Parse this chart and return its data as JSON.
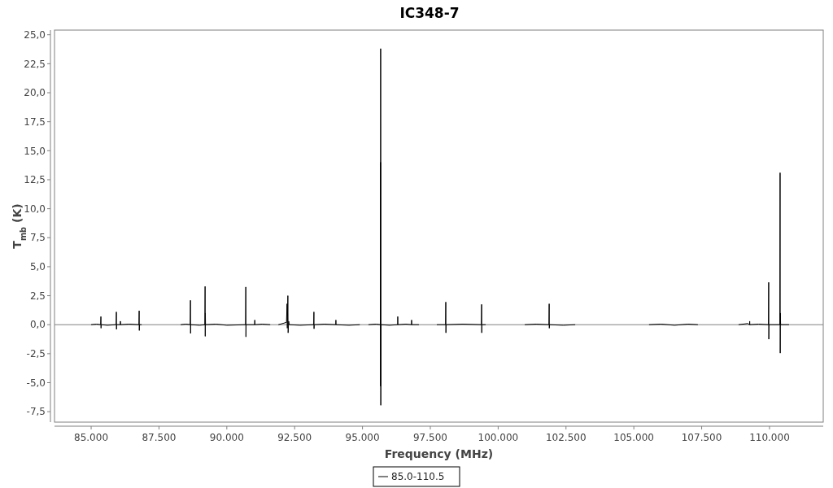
{
  "chart_data": {
    "type": "line",
    "title": "IC348-7",
    "xlabel": "Frequency (MHz)",
    "ylabel": "T$_{mb}$ (K)",
    "xlim": [
      83650,
      111980
    ],
    "ylim": [
      -8.4,
      25.4
    ],
    "xticks": [
      {
        "value": 85000,
        "label": "85.000"
      },
      {
        "value": 87500,
        "label": "87.500"
      },
      {
        "value": 90000,
        "label": "90.000"
      },
      {
        "value": 92500,
        "label": "92.500"
      },
      {
        "value": 95000,
        "label": "95.000"
      },
      {
        "value": 97500,
        "label": "97.500"
      },
      {
        "value": 100000,
        "label": "100.000"
      },
      {
        "value": 102500,
        "label": "102.500"
      },
      {
        "value": 105000,
        "label": "105.000"
      },
      {
        "value": 107500,
        "label": "107.500"
      },
      {
        "value": 110000,
        "label": "110.000"
      }
    ],
    "yticks": [
      {
        "value": -7.5,
        "label": "-7,5"
      },
      {
        "value": -5,
        "label": "-5,0"
      },
      {
        "value": -2.5,
        "label": "-2,5"
      },
      {
        "value": 0,
        "label": "0,0"
      },
      {
        "value": 2.5,
        "label": "2,5"
      },
      {
        "value": 5,
        "label": "5,0"
      },
      {
        "value": 7.5,
        "label": "7,5"
      },
      {
        "value": 10,
        "label": "10,0"
      },
      {
        "value": 12.5,
        "label": "12,5"
      },
      {
        "value": 15,
        "label": "15,0"
      },
      {
        "value": 17.5,
        "label": "17,5"
      },
      {
        "value": 20,
        "label": "20,0"
      },
      {
        "value": 22.5,
        "label": "22,5"
      },
      {
        "value": 25,
        "label": "25,0"
      }
    ],
    "grid": false,
    "legend": "bottom",
    "line_style": "solid",
    "ref_lines": [
      {
        "axis": "y",
        "value": 0,
        "color": "#808080"
      }
    ],
    "series": [
      {
        "name": "85.0-110.5",
        "color": "#000000",
        "x": [
          85000,
          85200,
          85350,
          85360,
          85365,
          85370,
          85600,
          85920,
          85930,
          85935,
          85940,
          86075,
          86080,
          86085,
          86400,
          86760,
          86770,
          86775,
          86780,
          86860,
          null,
          88300,
          88500,
          88650,
          88660,
          88665,
          88670,
          89000,
          89190,
          89200,
          89205,
          89210,
          89215,
          89600,
          90000,
          90690,
          90700,
          90705,
          90710,
          91025,
          91030,
          91035,
          91300,
          91600,
          null,
          91900,
          92200,
          92220,
          92230,
          92250,
          92260,
          92280,
          92300,
          92700,
          93200,
          93210,
          93215,
          93220,
          93600,
          94015,
          94020,
          94025,
          94500,
          94900,
          null,
          95220,
          95500,
          95660,
          95665,
          95667,
          95670,
          95675,
          95680,
          96000,
          96295,
          96300,
          96305,
          96600,
          96805,
          96810,
          96815,
          97080,
          null,
          97740,
          98060,
          98070,
          98075,
          98080,
          98700,
          99380,
          99390,
          99395,
          99400,
          99540,
          null,
          100980,
          101400,
          101870,
          101880,
          101885,
          101890,
          102400,
          102840,
          null,
          105560,
          106000,
          106500,
          107000,
          107360,
          null,
          108860,
          109200,
          109265,
          109270,
          109275,
          109600,
          109960,
          109970,
          109975,
          109980,
          110380,
          110390,
          110395,
          110400,
          110410,
          110720
        ],
        "values": [
          0,
          0.05,
          0,
          0.7,
          -0.3,
          0,
          -0.05,
          0,
          1.1,
          -0.4,
          0,
          0,
          0.3,
          0,
          0.05,
          0,
          1.2,
          -0.5,
          0,
          0,
          null,
          0,
          0.05,
          0,
          2.1,
          -0.75,
          0,
          -0.05,
          0,
          3.3,
          -1.0,
          1.0,
          0,
          0.05,
          -0.05,
          0,
          3.25,
          -1.05,
          0,
          0,
          0.4,
          0,
          0.05,
          0,
          null,
          0,
          0.2,
          1.8,
          -0.3,
          2.5,
          -0.7,
          0.3,
          0,
          -0.05,
          0,
          1.1,
          -0.35,
          0,
          0.05,
          0,
          0.4,
          0,
          -0.05,
          0,
          null,
          0,
          0.05,
          0,
          14.0,
          -5.3,
          23.8,
          -6.95,
          0,
          -0.05,
          0,
          0.7,
          0,
          0.05,
          0,
          0.4,
          0,
          0,
          null,
          0,
          0,
          1.95,
          -0.7,
          0,
          0.05,
          0,
          1.75,
          -0.7,
          0,
          0,
          null,
          0,
          0.05,
          0,
          1.8,
          -0.3,
          0,
          -0.05,
          0,
          null,
          0,
          0.05,
          -0.05,
          0.05,
          0,
          null,
          0,
          0.1,
          0,
          0.3,
          0,
          0.05,
          0,
          3.65,
          -1.25,
          0,
          0,
          13.1,
          -2.45,
          1.0,
          0,
          0
        ]
      }
    ]
  }
}
